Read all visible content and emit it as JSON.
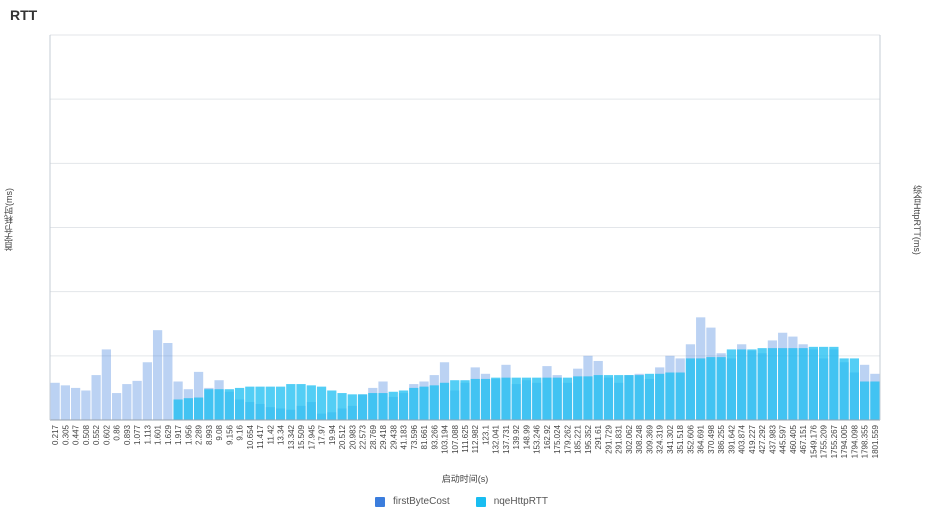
{
  "chart_data": {
    "type": "bar",
    "title": "RTT",
    "ylabel": "首字节耗时(ms)",
    "ylabel_right": "综合HttpRTT(ms)",
    "xlabel": "启动时间(s)",
    "ylim": [
      0,
      600
    ],
    "grid": true,
    "legend_position": "bottom",
    "tick_labels": [
      "0.217",
      "0.305",
      "0.447",
      "0.508",
      "0.552",
      "0.602",
      "0.86",
      "0.893",
      "1.077",
      "1.113",
      "1.601",
      "1.629",
      "1.917",
      "1.956",
      "2.289",
      "8.993",
      "9.08",
      "9.156",
      "9.16",
      "10.654",
      "11.417",
      "11.42",
      "13.34",
      "13.342",
      "15.509",
      "17.945",
      "17.97",
      "19.94",
      "20.512",
      "20.983",
      "22.573",
      "28.769",
      "29.418",
      "29.438",
      "41.183",
      "73.596",
      "81.661",
      "93.266",
      "103.194",
      "107.088",
      "111.625",
      "112.982",
      "123.1",
      "132.041",
      "137.731",
      "139.92",
      "148.99",
      "153.246",
      "162.92",
      "175.024",
      "179.262",
      "185.221",
      "195.352",
      "291.61",
      "291.729",
      "291.831",
      "302.062",
      "308.248",
      "309.369",
      "324.319",
      "341.302",
      "351.518",
      "352.606",
      "364.691",
      "370.498",
      "386.255",
      "391.642",
      "403.874",
      "419.227",
      "427.292",
      "437.983",
      "445.597",
      "460.405",
      "467.151",
      "1549.176",
      "1755.209",
      "1755.267",
      "1794.005",
      "1794.098",
      "1798.355",
      "1801.559"
    ],
    "series": [
      {
        "name": "firstByteCost",
        "color": "#3b7ddd",
        "values": [
          58,
          54,
          50,
          46,
          70,
          110,
          42,
          56,
          61,
          90,
          140,
          120,
          60,
          48,
          75,
          50,
          62,
          44,
          32,
          28,
          25,
          20,
          18,
          16,
          22,
          28,
          10,
          12,
          18,
          22,
          40,
          50,
          60,
          36,
          42,
          56,
          60,
          70,
          90,
          46,
          58,
          82,
          72,
          64,
          86,
          56,
          62,
          58,
          84,
          70,
          58,
          80,
          100,
          92,
          66,
          58,
          70,
          72,
          64,
          82,
          100,
          96,
          118,
          160,
          144,
          104,
          96,
          118,
          108,
          104,
          124,
          136,
          130,
          118,
          110,
          96,
          110,
          90,
          74,
          86,
          72
        ]
      },
      {
        "name": "nqeHttpRTT",
        "color": "#19bdf1",
        "values": [
          0,
          0,
          0,
          0,
          0,
          0,
          0,
          0,
          0,
          0,
          0,
          0,
          32,
          34,
          35,
          48,
          48,
          48,
          50,
          52,
          52,
          52,
          52,
          56,
          56,
          54,
          52,
          46,
          42,
          40,
          40,
          42,
          42,
          44,
          46,
          50,
          52,
          54,
          58,
          62,
          62,
          64,
          64,
          66,
          66,
          66,
          66,
          66,
          66,
          66,
          66,
          68,
          68,
          70,
          70,
          70,
          70,
          70,
          72,
          72,
          74,
          74,
          96,
          96,
          98,
          98,
          110,
          110,
          110,
          112,
          112,
          112,
          112,
          112,
          114,
          114,
          114,
          96,
          96,
          60,
          60
        ]
      }
    ]
  },
  "legend": [
    {
      "label": "firstByteCost",
      "color": "#3b7ddd"
    },
    {
      "label": "nqeHttpRTT",
      "color": "#19bdf1"
    }
  ]
}
